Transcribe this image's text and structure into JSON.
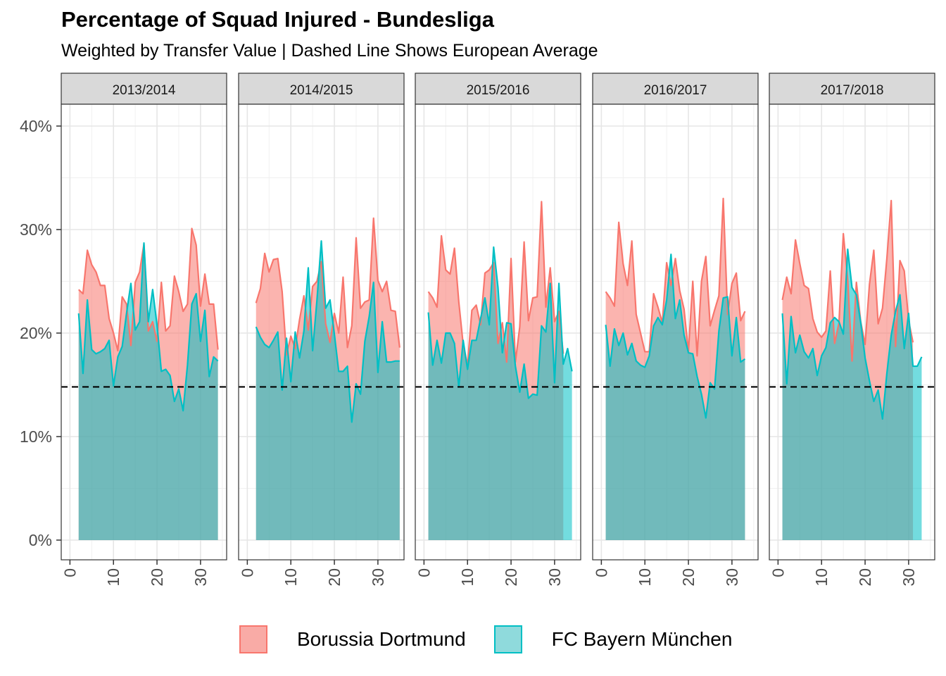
{
  "chart_data": {
    "type": "area",
    "title": "Percentage of Squad Injured - Bundesliga",
    "subtitle": "Weighted by Transfer Value | Dashed Line Shows European Average",
    "xlabel": "",
    "ylabel": "",
    "ylim": [
      0,
      0.42
    ],
    "xlim": [
      -2,
      36
    ],
    "x_ticks": [
      "0",
      "10",
      "20",
      "30"
    ],
    "y_ticks": [
      "0%",
      "10%",
      "20%",
      "30%",
      "40%"
    ],
    "y_tick_values": [
      0,
      0.1,
      0.2,
      0.3,
      0.4
    ],
    "x_tick_values": [
      0,
      10,
      20,
      30
    ],
    "grid": true,
    "legend_position": "bottom",
    "reference_line": {
      "value": 0.148,
      "style": "dashed",
      "color": "#000000"
    },
    "series_colors": {
      "Borussia Dortmund": "#F8766D",
      "FC Bayern München": "#00BFC4"
    },
    "overlap_color": "#8aaeaa",
    "facets": [
      {
        "label": "2013/2014",
        "series": [
          {
            "name": "Borussia Dortmund",
            "x_start": 2,
            "values": [
              0.242,
              0.238,
              0.28,
              0.266,
              0.259,
              0.246,
              0.246,
              0.214,
              0.2,
              0.183,
              0.235,
              0.228,
              0.188,
              0.249,
              0.259,
              0.286,
              0.202,
              0.211,
              0.192,
              0.249,
              0.202,
              0.207,
              0.255,
              0.24,
              0.221,
              0.228,
              0.301,
              0.285,
              0.226,
              0.257,
              0.228,
              0.228,
              0.184
            ]
          },
          {
            "name": "FC Bayern München",
            "x_start": 2,
            "values": [
              0.219,
              0.161,
              0.232,
              0.184,
              0.18,
              0.182,
              0.185,
              0.193,
              0.149,
              0.177,
              0.187,
              0.219,
              0.248,
              0.203,
              0.211,
              0.287,
              0.211,
              0.242,
              0.208,
              0.163,
              0.165,
              0.159,
              0.134,
              0.146,
              0.125,
              0.169,
              0.228,
              0.238,
              0.192,
              0.222,
              0.158,
              0.177,
              0.173
            ]
          }
        ]
      },
      {
        "label": "2014/2015",
        "series": [
          {
            "name": "Borussia Dortmund",
            "x_start": 2,
            "values": [
              0.229,
              0.243,
              0.277,
              0.259,
              0.271,
              0.272,
              0.24,
              0.179,
              0.197,
              0.185,
              0.213,
              0.236,
              0.203,
              0.245,
              0.25,
              0.269,
              0.209,
              0.191,
              0.219,
              0.2,
              0.254,
              0.186,
              0.207,
              0.292,
              0.224,
              0.23,
              0.232,
              0.311,
              0.251,
              0.24,
              0.25,
              0.222,
              0.221,
              0.186
            ]
          },
          {
            "name": "FC Bayern München",
            "x_start": 2,
            "values": [
              0.206,
              0.196,
              0.189,
              0.186,
              0.193,
              0.201,
              0.145,
              0.195,
              0.153,
              0.201,
              0.176,
              0.202,
              0.263,
              0.183,
              0.232,
              0.289,
              0.224,
              0.232,
              0.199,
              0.163,
              0.163,
              0.168,
              0.114,
              0.151,
              0.141,
              0.192,
              0.216,
              0.249,
              0.162,
              0.211,
              0.172,
              0.172,
              0.173,
              0.173
            ]
          }
        ]
      },
      {
        "label": "2015/2016",
        "series": [
          {
            "name": "Borussia Dortmund",
            "x_start": 1,
            "values": [
              0.24,
              0.234,
              0.225,
              0.294,
              0.261,
              0.257,
              0.282,
              0.23,
              0.189,
              0.169,
              0.222,
              0.227,
              0.208,
              0.258,
              0.261,
              0.268,
              0.19,
              0.21,
              0.172,
              0.272,
              0.172,
              0.206,
              0.288,
              0.212,
              0.234,
              0.235,
              0.327,
              0.225,
              0.263,
              0.211,
              0.221,
              0.18
            ]
          },
          {
            "name": "FC Bayern München",
            "x_start": 1,
            "values": [
              0.22,
              0.169,
              0.193,
              0.171,
              0.2,
              0.2,
              0.19,
              0.148,
              0.193,
              0.165,
              0.193,
              0.193,
              0.214,
              0.234,
              0.208,
              0.283,
              0.244,
              0.181,
              0.21,
              0.209,
              0.168,
              0.143,
              0.17,
              0.137,
              0.141,
              0.14,
              0.207,
              0.201,
              0.248,
              0.152,
              0.248,
              0.17,
              0.185,
              0.163
            ]
          }
        ]
      },
      {
        "label": "2016/2017",
        "series": [
          {
            "name": "Borussia Dortmund",
            "x_start": 1,
            "values": [
              0.24,
              0.234,
              0.226,
              0.307,
              0.267,
              0.246,
              0.289,
              0.218,
              0.2,
              0.182,
              0.182,
              0.238,
              0.225,
              0.21,
              0.268,
              0.246,
              0.272,
              0.241,
              0.223,
              0.182,
              0.25,
              0.178,
              0.25,
              0.274,
              0.207,
              0.222,
              0.236,
              0.33,
              0.218,
              0.248,
              0.258,
              0.212,
              0.221
            ]
          },
          {
            "name": "FC Bayern München",
            "x_start": 1,
            "values": [
              0.208,
              0.168,
              0.204,
              0.188,
              0.2,
              0.179,
              0.19,
              0.173,
              0.169,
              0.167,
              0.178,
              0.207,
              0.215,
              0.208,
              0.232,
              0.276,
              0.214,
              0.232,
              0.198,
              0.181,
              0.18,
              0.158,
              0.141,
              0.118,
              0.152,
              0.146,
              0.202,
              0.234,
              0.235,
              0.178,
              0.215,
              0.172,
              0.175
            ]
          }
        ]
      },
      {
        "label": "2017/2018",
        "series": [
          {
            "name": "Borussia Dortmund",
            "x_start": 1,
            "values": [
              0.232,
              0.254,
              0.238,
              0.29,
              0.267,
              0.246,
              0.243,
              0.214,
              0.201,
              0.196,
              0.202,
              0.26,
              0.19,
              0.21,
              0.296,
              0.252,
              0.173,
              0.249,
              0.211,
              0.189,
              0.247,
              0.28,
              0.209,
              0.224,
              0.272,
              0.328,
              0.187,
              0.27,
              0.26,
              0.212,
              0.191
            ]
          },
          {
            "name": "FC Bayern München",
            "x_start": 1,
            "values": [
              0.219,
              0.151,
              0.216,
              0.181,
              0.198,
              0.182,
              0.176,
              0.185,
              0.159,
              0.178,
              0.186,
              0.21,
              0.215,
              0.211,
              0.199,
              0.281,
              0.244,
              0.237,
              0.21,
              0.176,
              0.154,
              0.134,
              0.145,
              0.117,
              0.161,
              0.198,
              0.221,
              0.237,
              0.185,
              0.219,
              0.168,
              0.168,
              0.177
            ]
          }
        ]
      }
    ]
  },
  "legend": {
    "items": [
      {
        "label": "Borussia Dortmund",
        "fill": "#F9ABA6",
        "stroke": "#F8766D"
      },
      {
        "label": "FC Bayern München",
        "fill": "#8FDADC",
        "stroke": "#00BFC4"
      }
    ]
  }
}
